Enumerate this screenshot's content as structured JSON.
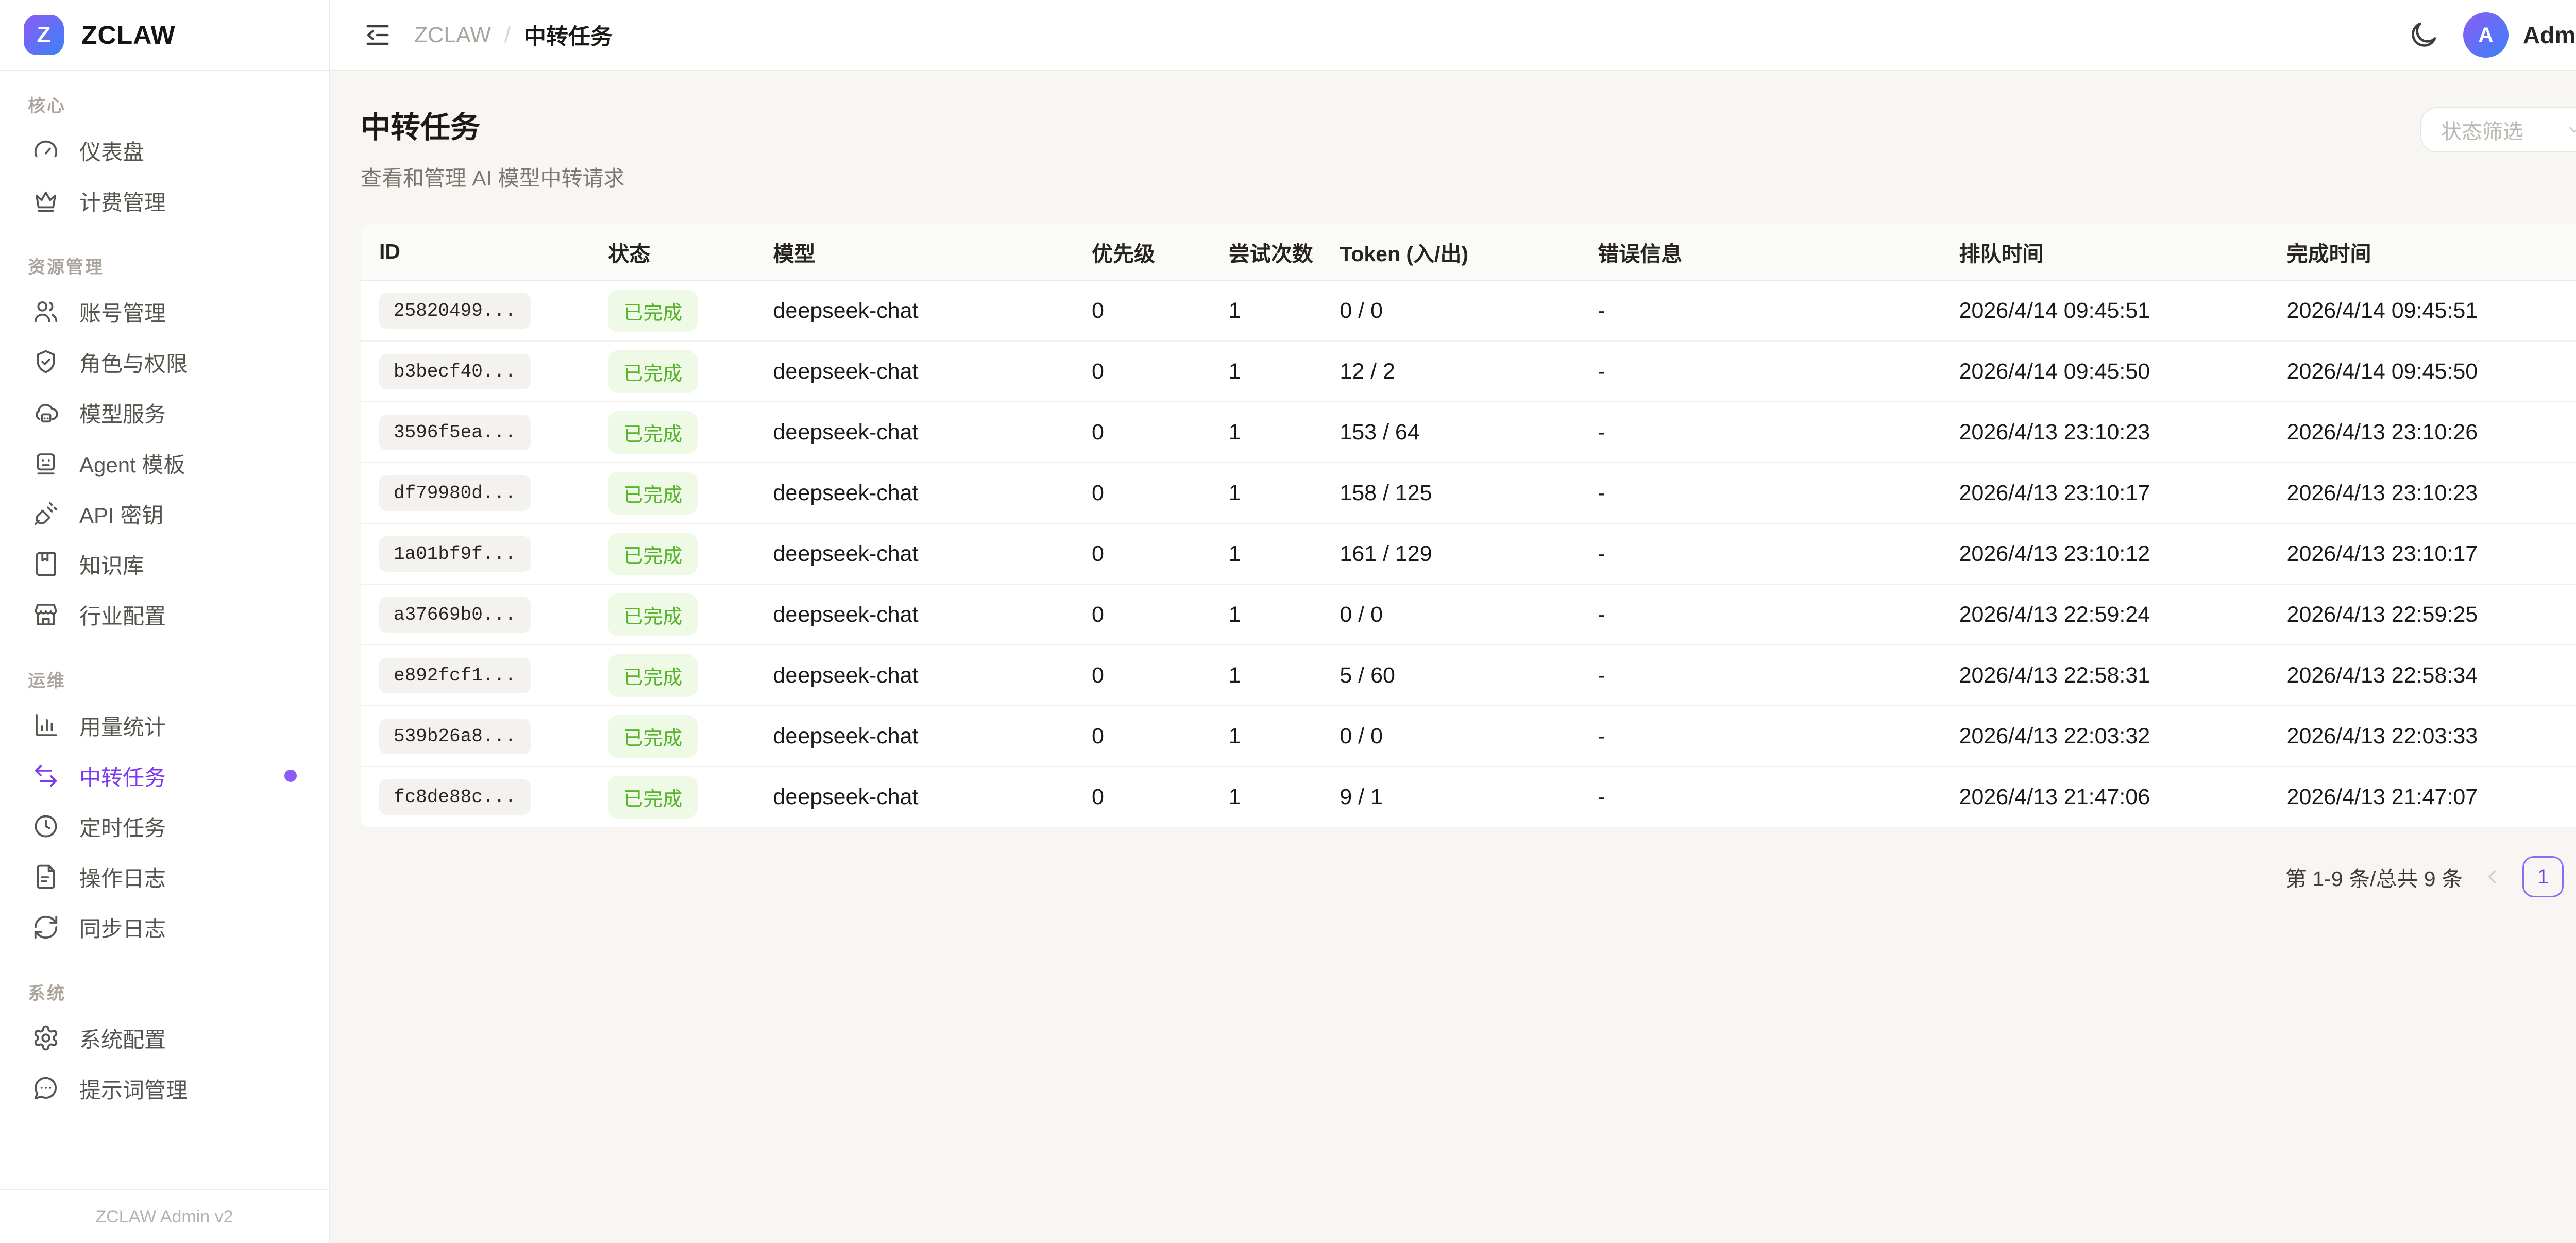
{
  "app": {
    "brand": "ZCLAW",
    "logo_letter": "Z",
    "footer": "ZCLAW Admin v2"
  },
  "topbar": {
    "breadcrumb": {
      "root": "ZCLAW",
      "separator": "/",
      "current": "中转任务"
    },
    "user": {
      "initial": "A",
      "name": "Admin"
    }
  },
  "sidebar": {
    "sections": [
      {
        "label": "核心",
        "items": [
          {
            "id": "dashboard",
            "icon": "gauge-icon",
            "label": "仪表盘"
          },
          {
            "id": "billing",
            "icon": "crown-icon",
            "label": "计费管理"
          }
        ]
      },
      {
        "label": "资源管理",
        "items": [
          {
            "id": "accounts",
            "icon": "users-icon",
            "label": "账号管理"
          },
          {
            "id": "roles",
            "icon": "shield-check-icon",
            "label": "角色与权限"
          },
          {
            "id": "model-services",
            "icon": "cloud-server-icon",
            "label": "模型服务"
          },
          {
            "id": "agent-templates",
            "icon": "bot-icon",
            "label": "Agent 模板"
          },
          {
            "id": "api-keys",
            "icon": "plug-icon",
            "label": "API 密钥"
          },
          {
            "id": "knowledge-base",
            "icon": "book-icon",
            "label": "知识库"
          },
          {
            "id": "industry-config",
            "icon": "store-icon",
            "label": "行业配置"
          }
        ]
      },
      {
        "label": "运维",
        "items": [
          {
            "id": "usage-stats",
            "icon": "bar-chart-icon",
            "label": "用量统计"
          },
          {
            "id": "relay-tasks",
            "icon": "transfer-arrows-icon",
            "label": "中转任务",
            "active": true
          },
          {
            "id": "cron-tasks",
            "icon": "clock-icon",
            "label": "定时任务"
          },
          {
            "id": "operation-logs",
            "icon": "file-text-icon",
            "label": "操作日志"
          },
          {
            "id": "sync-logs",
            "icon": "sync-icon",
            "label": "同步日志"
          }
        ]
      },
      {
        "label": "系统",
        "items": [
          {
            "id": "system-config",
            "icon": "gear-icon",
            "label": "系统配置"
          },
          {
            "id": "prompt-management",
            "icon": "message-dots-icon",
            "label": "提示词管理"
          }
        ]
      }
    ]
  },
  "page": {
    "title": "中转任务",
    "subtitle": "查看和管理 AI 模型中转请求",
    "filter_placeholder": "状态筛选"
  },
  "table": {
    "columns": [
      "ID",
      "状态",
      "模型",
      "优先级",
      "尝试次数",
      "Token (入/出)",
      "错误信息",
      "排队时间",
      "完成时间"
    ],
    "rows": [
      {
        "id": "25820499...",
        "status": "已完成",
        "model": "deepseek-chat",
        "priority": "0",
        "attempts": "1",
        "tokens": "0 / 0",
        "error": "-",
        "queued_at": "2026/4/14 09:45:51",
        "completed_at": "2026/4/14 09:45:51"
      },
      {
        "id": "b3becf40...",
        "status": "已完成",
        "model": "deepseek-chat",
        "priority": "0",
        "attempts": "1",
        "tokens": "12 / 2",
        "error": "-",
        "queued_at": "2026/4/14 09:45:50",
        "completed_at": "2026/4/14 09:45:50"
      },
      {
        "id": "3596f5ea...",
        "status": "已完成",
        "model": "deepseek-chat",
        "priority": "0",
        "attempts": "1",
        "tokens": "153 / 64",
        "error": "-",
        "queued_at": "2026/4/13 23:10:23",
        "completed_at": "2026/4/13 23:10:26"
      },
      {
        "id": "df79980d...",
        "status": "已完成",
        "model": "deepseek-chat",
        "priority": "0",
        "attempts": "1",
        "tokens": "158 / 125",
        "error": "-",
        "queued_at": "2026/4/13 23:10:17",
        "completed_at": "2026/4/13 23:10:23"
      },
      {
        "id": "1a01bf9f...",
        "status": "已完成",
        "model": "deepseek-chat",
        "priority": "0",
        "attempts": "1",
        "tokens": "161 / 129",
        "error": "-",
        "queued_at": "2026/4/13 23:10:12",
        "completed_at": "2026/4/13 23:10:17"
      },
      {
        "id": "a37669b0...",
        "status": "已完成",
        "model": "deepseek-chat",
        "priority": "0",
        "attempts": "1",
        "tokens": "0 / 0",
        "error": "-",
        "queued_at": "2026/4/13 22:59:24",
        "completed_at": "2026/4/13 22:59:25"
      },
      {
        "id": "e892fcf1...",
        "status": "已完成",
        "model": "deepseek-chat",
        "priority": "0",
        "attempts": "1",
        "tokens": "5 / 60",
        "error": "-",
        "queued_at": "2026/4/13 22:58:31",
        "completed_at": "2026/4/13 22:58:34"
      },
      {
        "id": "539b26a8...",
        "status": "已完成",
        "model": "deepseek-chat",
        "priority": "0",
        "attempts": "1",
        "tokens": "0 / 0",
        "error": "-",
        "queued_at": "2026/4/13 22:03:32",
        "completed_at": "2026/4/13 22:03:33"
      },
      {
        "id": "fc8de88c...",
        "status": "已完成",
        "model": "deepseek-chat",
        "priority": "0",
        "attempts": "1",
        "tokens": "9 / 1",
        "error": "-",
        "queued_at": "2026/4/13 21:47:06",
        "completed_at": "2026/4/13 21:47:07"
      }
    ]
  },
  "pagination": {
    "summary": "第 1-9 条/总共 9 条",
    "current_page": "1"
  },
  "colors": {
    "accent_purple": "#7c3aed",
    "accent_dot": "#8b5cf6",
    "brand_gradient_start": "#8b5cf6",
    "brand_gradient_end": "#3b82f6",
    "status_green_text": "#58b42c",
    "status_green_bg": "#eefae6",
    "page_background": "#f7f6f3"
  }
}
